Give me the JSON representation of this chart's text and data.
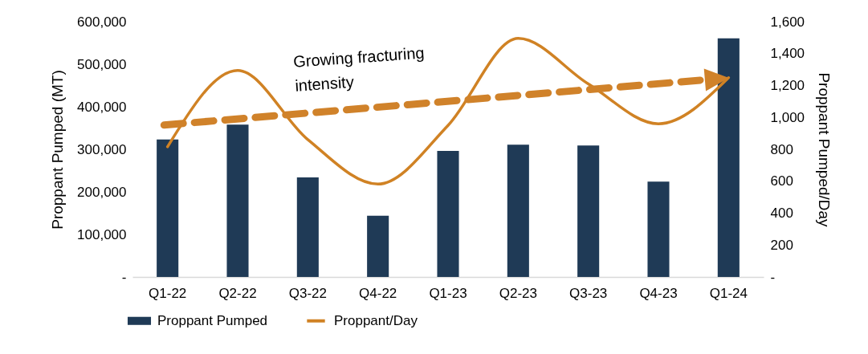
{
  "chart_data": {
    "type": "bar",
    "categories": [
      "Q1-22",
      "Q2-22",
      "Q3-22",
      "Q4-22",
      "Q1-23",
      "Q2-23",
      "Q3-23",
      "Q4-23",
      "Q1-24"
    ],
    "ylabel": "Proppant Pumped (MT)",
    "y2label": "Proppant Pumped/Day",
    "ylim": [
      0,
      600000
    ],
    "yticks": [
      {
        "value": 0,
        "label": "-"
      },
      {
        "value": 100000,
        "label": "100,000"
      },
      {
        "value": 200000,
        "label": "200,000"
      },
      {
        "value": 300000,
        "label": "300,000"
      },
      {
        "value": 400000,
        "label": "400,000"
      },
      {
        "value": 500000,
        "label": "500,000"
      },
      {
        "value": 600000,
        "label": "600,000"
      }
    ],
    "y2lim": [
      0,
      1600
    ],
    "y2ticks": [
      {
        "value": 0,
        "label": "-"
      },
      200,
      400,
      600,
      800,
      {
        "value": 1000,
        "label": "1,000"
      },
      {
        "value": 1200,
        "label": "1,200"
      },
      {
        "value": 1400,
        "label": "1,400"
      },
      {
        "value": 1600,
        "label": "1,600"
      }
    ],
    "series": [
      {
        "name": "Proppant Pumped",
        "color": "#1f3a56",
        "values": [
          323000,
          358000,
          234000,
          144000,
          296000,
          311000,
          309000,
          224000,
          561000
        ]
      },
      {
        "name": "Proppant/Day",
        "type": "line",
        "axis": "y2",
        "color": "#d08224",
        "values": [
          816,
          1294,
          861,
          582,
          950,
          1495,
          1210,
          960,
          1249
        ]
      }
    ],
    "annotations": [
      "Growing fracturing intensity"
    ],
    "grid": false,
    "legend": "bottom"
  }
}
